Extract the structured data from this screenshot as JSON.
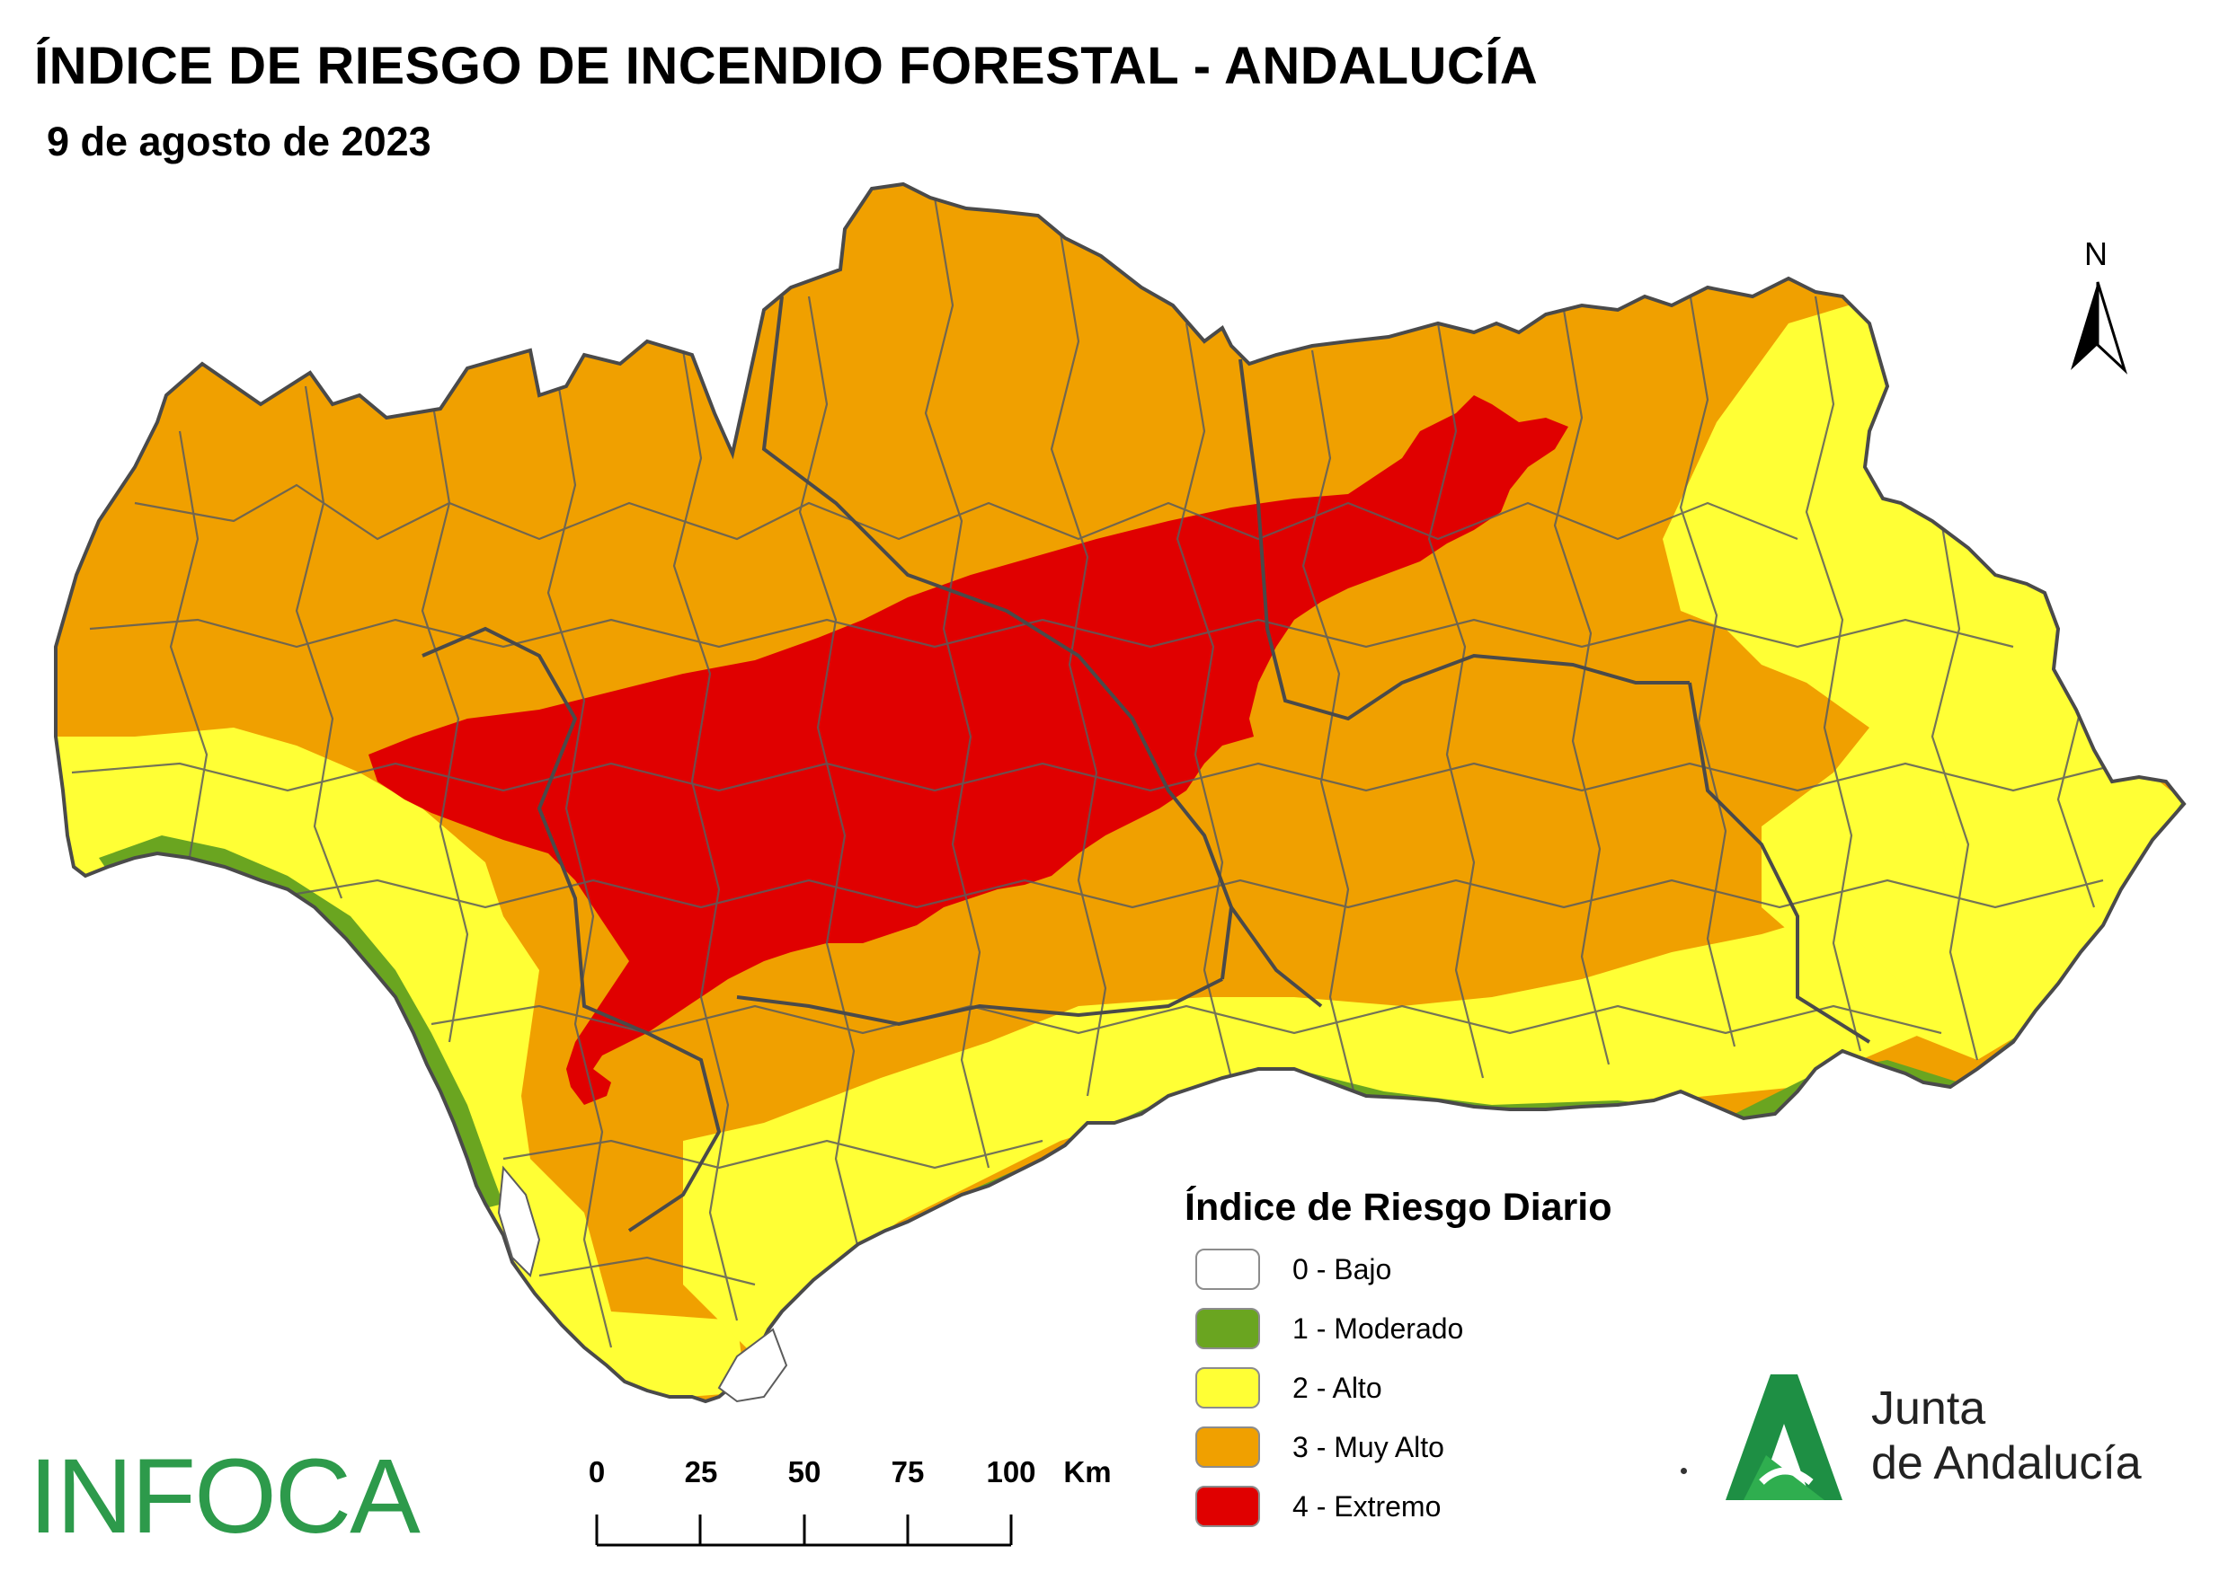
{
  "title": "ÍNDICE DE RIESGO DE INCENDIO FORESTAL - ANDALUCÍA",
  "subtitle": "9 de agosto de 2023",
  "north_label": "N",
  "legend": {
    "title": "Índice de Riesgo Diario",
    "items": [
      {
        "label": "0 - Bajo",
        "color": "#ffffff"
      },
      {
        "label": "1 - Moderado",
        "color": "#6aa520"
      },
      {
        "label": "2 - Alto",
        "color": "#ffff35"
      },
      {
        "label": "3 - Muy Alto",
        "color": "#f0a000"
      },
      {
        "label": "4 - Extremo",
        "color": "#e00000"
      }
    ]
  },
  "scale": {
    "labels": [
      "0",
      "25",
      "50",
      "75",
      "100"
    ],
    "unit": "Km"
  },
  "brand_left": "INFOCA",
  "brand_right": {
    "line1": "Junta",
    "line2": "de Andalucía",
    "color": "#2d9a4b"
  },
  "map_colors": {
    "border": "#5c5c5c",
    "muy_alto": "#f0a000",
    "alto": "#ffff35",
    "moderado": "#6aa520",
    "extremo": "#e00000"
  }
}
